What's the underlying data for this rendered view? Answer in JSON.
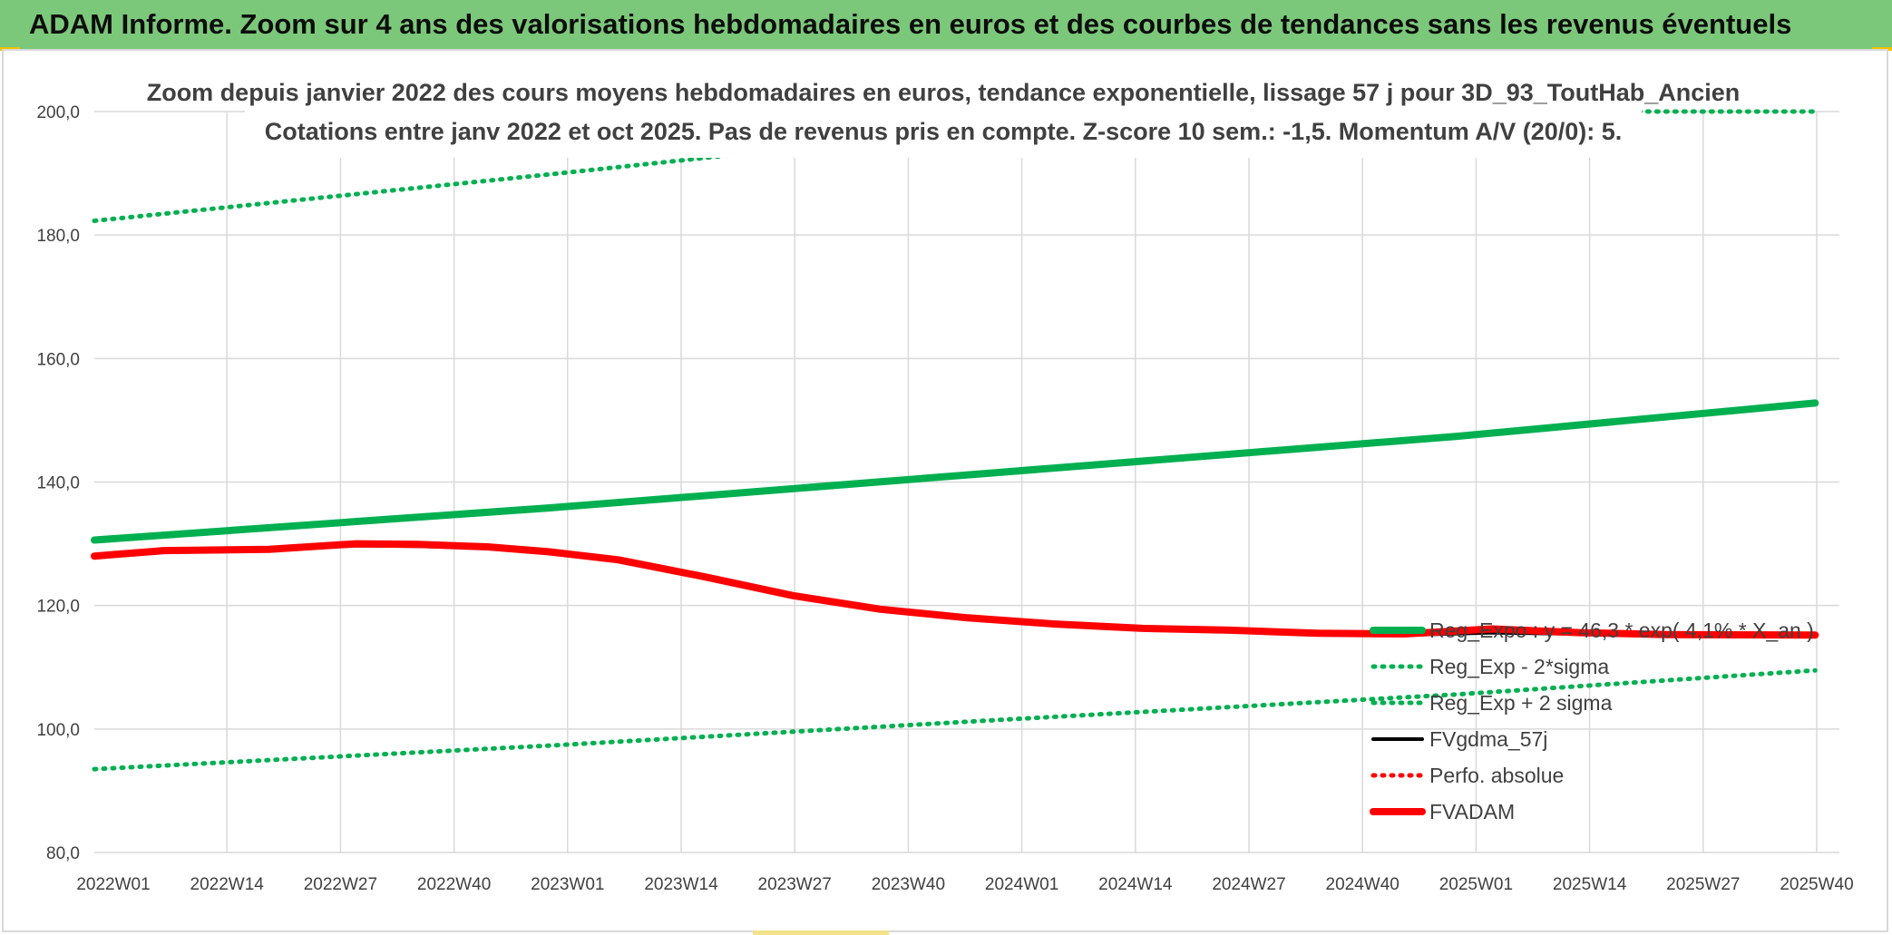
{
  "header": {
    "banner_title": "ADAM Informe. Zoom sur 4 ans des valorisations hebdomadaires en euros et des courbes de tendances sans les revenus éventuels"
  },
  "colors": {
    "banner_bg": "#7cc87a",
    "green": "#00b050",
    "red": "#ff0000",
    "black": "#000000",
    "grid": "#d9d9d9",
    "text": "#404040"
  },
  "chart_data": {
    "type": "line",
    "title_line1": "Zoom depuis janvier 2022 des cours moyens hebdomadaires en euros, tendance exponentielle, lissage 57 j pour 3D_93_ToutHab_Ancien",
    "title_line2": "Cotations entre janv 2022 et oct 2025. Pas de revenus pris en compte. Z-score 10 sem.: -1,5. Momentum A/V (20/0): 5.",
    "ylim": [
      80,
      200
    ],
    "yticks": [
      "80,0",
      "100,0",
      "120,0",
      "140,0",
      "160,0",
      "180,0",
      "200,0"
    ],
    "ytick_values": [
      80,
      100,
      120,
      140,
      160,
      180,
      200
    ],
    "x_categories": [
      "2022W01",
      "2022W14",
      "2022W27",
      "2022W40",
      "2023W01",
      "2023W14",
      "2023W27",
      "2023W40",
      "2024W01",
      "2024W14",
      "2024W27",
      "2024W40",
      "2025W01",
      "2025W14",
      "2025W27",
      "2025W40"
    ],
    "x_week_range": [
      0,
      197
    ],
    "grid": true,
    "legend_position": "bottom-right",
    "series": [
      {
        "name": "Reg_Expo : y = 46,3 * exp( 4,1% * X_an )",
        "style": "solid-thick",
        "color": "#00b050",
        "points": [
          [
            0,
            130.6
          ],
          [
            52,
            135.8
          ],
          [
            104,
            141.6
          ],
          [
            156,
            147.4
          ],
          [
            197,
            152.8
          ]
        ]
      },
      {
        "name": "Reg_Exp - 2*sigma",
        "style": "dotted",
        "color": "#00b050",
        "points": [
          [
            0,
            93.5
          ],
          [
            52,
            97.3
          ],
          [
            104,
            101.5
          ],
          [
            156,
            105.6
          ],
          [
            197,
            109.5
          ]
        ]
      },
      {
        "name": "Reg_Exp + 2 sigma",
        "style": "dotted",
        "color": "#00b050",
        "points": [
          [
            0,
            182.3
          ],
          [
            52,
            189.8
          ],
          [
            104,
            197.6
          ],
          [
            110,
            200
          ],
          [
            197,
            200
          ]
        ]
      },
      {
        "name": "FVgdma_57j",
        "style": "solid",
        "color": "#000000",
        "points": [
          [
            0,
            128
          ],
          [
            8,
            128.8
          ],
          [
            20,
            129
          ],
          [
            30,
            129.7
          ],
          [
            37,
            129.6
          ],
          [
            45,
            129.3
          ],
          [
            52,
            128.6
          ],
          [
            60,
            127.3
          ],
          [
            70,
            124.5
          ],
          [
            80,
            121.5
          ],
          [
            90,
            119.3
          ],
          [
            100,
            117.8
          ],
          [
            110,
            117.2
          ],
          [
            120,
            116.5
          ],
          [
            130,
            116
          ],
          [
            140,
            115.5
          ],
          [
            150,
            115.2
          ],
          [
            160,
            115.6
          ],
          [
            170,
            115.4
          ],
          [
            180,
            115.2
          ],
          [
            197,
            115.1
          ]
        ]
      },
      {
        "name": "Perfo. absolue",
        "style": "dotted",
        "color": "#ff0000",
        "points": [
          [
            0,
            128
          ],
          [
            8,
            128.9
          ],
          [
            20,
            129.1
          ],
          [
            30,
            130
          ],
          [
            37,
            129.9
          ],
          [
            45,
            129.5
          ],
          [
            52,
            128.7
          ],
          [
            60,
            127.4
          ],
          [
            70,
            124.6
          ],
          [
            80,
            121.6
          ],
          [
            90,
            119.4
          ],
          [
            100,
            118
          ],
          [
            110,
            117
          ],
          [
            120,
            116.3
          ],
          [
            130,
            116
          ],
          [
            140,
            115.5
          ],
          [
            150,
            115.4
          ],
          [
            160,
            116.2
          ],
          [
            170,
            115.6
          ],
          [
            180,
            115.3
          ],
          [
            197,
            115.2
          ]
        ]
      },
      {
        "name": "FVADAM",
        "style": "solid-thick",
        "color": "#ff0000",
        "points": [
          [
            0,
            128
          ],
          [
            8,
            128.9
          ],
          [
            20,
            129.1
          ],
          [
            30,
            130
          ],
          [
            37,
            129.9
          ],
          [
            45,
            129.5
          ],
          [
            52,
            128.7
          ],
          [
            60,
            127.4
          ],
          [
            70,
            124.6
          ],
          [
            80,
            121.6
          ],
          [
            90,
            119.4
          ],
          [
            100,
            118
          ],
          [
            110,
            117
          ],
          [
            120,
            116.3
          ],
          [
            130,
            116
          ],
          [
            140,
            115.5
          ],
          [
            150,
            115.4
          ],
          [
            160,
            116.2
          ],
          [
            170,
            115.6
          ],
          [
            180,
            115.3
          ],
          [
            197,
            115.2
          ]
        ]
      }
    ]
  }
}
